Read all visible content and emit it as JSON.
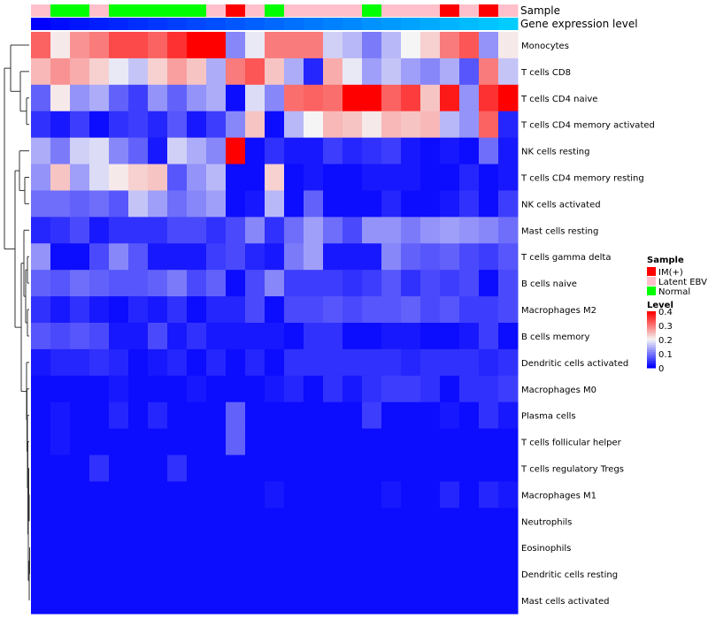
{
  "chart_data": {
    "type": "heatmap",
    "title": "",
    "annotation_labels": {
      "sample": "Sample",
      "level": "Gene expression level"
    },
    "rows": [
      "Monocytes",
      "T cells CD8",
      "T cells CD4 naive",
      "T cells CD4 memory activated",
      "NK cells resting",
      "T cells CD4 memory resting",
      "NK cells activated",
      "Mast cells resting",
      "T cells gamma delta",
      "B cells naive",
      "Macrophages M2",
      "B cells memory",
      "Dendritic cells activated",
      "Macrophages M0",
      "Plasma cells",
      "T cells follicular helper",
      "T cells regulatory  Tregs",
      "Macrophages M1",
      "Neutrophils",
      "Eosinophils",
      "Dendritic cells resting",
      "Mast cells activated"
    ],
    "column_samples": [
      "Latent EBV",
      "Normal",
      "Normal",
      "Latent EBV",
      "Normal",
      "Normal",
      "Normal",
      "Normal",
      "Normal",
      "Latent EBV",
      "IM(+)",
      "Latent EBV",
      "Normal",
      "Latent EBV",
      "Latent EBV",
      "Latent EBV",
      "Latent EBV",
      "Normal",
      "Latent EBV",
      "Latent EBV",
      "Latent EBV",
      "IM(+)",
      "Latent EBV",
      "IM(+)",
      "Latent EBV"
    ],
    "column_levels": [
      0.05,
      0.08,
      0.1,
      0.12,
      0.14,
      0.16,
      0.18,
      0.2,
      0.22,
      0.24,
      0.26,
      0.28,
      0.3,
      0.32,
      0.34,
      0.36,
      0.38,
      0.4,
      0.42,
      0.44,
      0.46,
      0.48,
      0.5,
      0.52,
      0.54
    ],
    "values": [
      [
        0.32,
        0.21,
        0.28,
        0.3,
        0.34,
        0.34,
        0.32,
        0.36,
        0.4,
        0.4,
        0.11,
        0.19,
        0.3,
        0.3,
        0.3,
        0.17,
        0.15,
        0.1,
        0.15,
        0.2,
        0.23,
        0.3,
        0.33,
        0.12,
        0.21
      ],
      [
        0.25,
        0.28,
        0.26,
        0.23,
        0.19,
        0.16,
        0.23,
        0.27,
        0.24,
        0.14,
        0.3,
        0.33,
        0.24,
        0.14,
        0.03,
        0.26,
        0.19,
        0.13,
        0.16,
        0.13,
        0.11,
        0.14,
        0.07,
        0.3,
        0.16
      ],
      [
        0.08,
        0.21,
        0.12,
        0.14,
        0.08,
        0.05,
        0.12,
        0.08,
        0.12,
        0.14,
        0.01,
        0.18,
        0.11,
        0.31,
        0.32,
        0.31,
        0.4,
        0.4,
        0.32,
        0.35,
        0.24,
        0.38,
        0.12,
        0.36,
        0.4
      ],
      [
        0.04,
        0.02,
        0.05,
        0.01,
        0.04,
        0.05,
        0.03,
        0.07,
        0.02,
        0.05,
        0.11,
        0.24,
        0.01,
        0.15,
        0.2,
        0.25,
        0.24,
        0.21,
        0.25,
        0.24,
        0.25,
        0.15,
        0.12,
        0.32,
        0.03
      ],
      [
        0.14,
        0.1,
        0.17,
        0.18,
        0.11,
        0.08,
        0.02,
        0.17,
        0.14,
        0.11,
        0.4,
        0.01,
        0.04,
        0.02,
        0.02,
        0.05,
        0.03,
        0.04,
        0.05,
        0.02,
        0.01,
        0.02,
        0.01,
        0.09,
        0.02
      ],
      [
        0.12,
        0.24,
        0.13,
        0.18,
        0.21,
        0.23,
        0.24,
        0.07,
        0.12,
        0.15,
        0.01,
        0.01,
        0.23,
        0.01,
        0.02,
        0.01,
        0.01,
        0.02,
        0.02,
        0.02,
        0.01,
        0.01,
        0.03,
        0.01,
        0.02
      ],
      [
        0.09,
        0.09,
        0.08,
        0.09,
        0.07,
        0.16,
        0.13,
        0.09,
        0.11,
        0.13,
        0.01,
        0.02,
        0.15,
        0.01,
        0.08,
        0.01,
        0.01,
        0.01,
        0.03,
        0.01,
        0.01,
        0.02,
        0.04,
        0.01,
        0.05
      ],
      [
        0.03,
        0.04,
        0.06,
        0.02,
        0.04,
        0.04,
        0.04,
        0.06,
        0.06,
        0.04,
        0.06,
        0.11,
        0.04,
        0.09,
        0.13,
        0.09,
        0.06,
        0.12,
        0.12,
        0.1,
        0.12,
        0.13,
        0.12,
        0.11,
        0.09
      ],
      [
        0.12,
        0.01,
        0.01,
        0.06,
        0.11,
        0.07,
        0.02,
        0.02,
        0.02,
        0.05,
        0.06,
        0.03,
        0.02,
        0.1,
        0.13,
        0.02,
        0.02,
        0.02,
        0.11,
        0.08,
        0.07,
        0.08,
        0.06,
        0.05,
        0.07
      ],
      [
        0.08,
        0.07,
        0.09,
        0.08,
        0.07,
        0.07,
        0.08,
        0.1,
        0.06,
        0.08,
        0.01,
        0.06,
        0.11,
        0.05,
        0.05,
        0.05,
        0.04,
        0.05,
        0.07,
        0.04,
        0.06,
        0.05,
        0.06,
        0.01,
        0.06
      ],
      [
        0.04,
        0.02,
        0.04,
        0.02,
        0.01,
        0.03,
        0.02,
        0.04,
        0.01,
        0.03,
        0.03,
        0.06,
        0.01,
        0.06,
        0.06,
        0.07,
        0.06,
        0.07,
        0.07,
        0.08,
        0.06,
        0.07,
        0.05,
        0.05,
        0.06
      ],
      [
        0.07,
        0.06,
        0.07,
        0.06,
        0.02,
        0.02,
        0.06,
        0.02,
        0.04,
        0.02,
        0.02,
        0.02,
        0.02,
        0.01,
        0.04,
        0.04,
        0.01,
        0.01,
        0.02,
        0.02,
        0.01,
        0.01,
        0.02,
        0.05,
        0.01
      ],
      [
        0.02,
        0.03,
        0.03,
        0.04,
        0.03,
        0.01,
        0.02,
        0.03,
        0.01,
        0.03,
        0.01,
        0.03,
        0.01,
        0.04,
        0.04,
        0.04,
        0.04,
        0.04,
        0.04,
        0.03,
        0.04,
        0.04,
        0.04,
        0.03,
        0.04
      ],
      [
        0.01,
        0.01,
        0.01,
        0.01,
        0.02,
        0.01,
        0.01,
        0.01,
        0.02,
        0.01,
        0.01,
        0.01,
        0.02,
        0.03,
        0.01,
        0.04,
        0.02,
        0.04,
        0.05,
        0.05,
        0.04,
        0.01,
        0.04,
        0.04,
        0.05
      ],
      [
        0.01,
        0.02,
        0.01,
        0.01,
        0.03,
        0.01,
        0.03,
        0.01,
        0.01,
        0.01,
        0.08,
        0.01,
        0.01,
        0.01,
        0.01,
        0.01,
        0.01,
        0.05,
        0.01,
        0.01,
        0.01,
        0.02,
        0.01,
        0.04,
        0.02
      ],
      [
        0.01,
        0.02,
        0.01,
        0.01,
        0.01,
        0.01,
        0.01,
        0.01,
        0.01,
        0.01,
        0.08,
        0.01,
        0.01,
        0.01,
        0.01,
        0.01,
        0.01,
        0.01,
        0.01,
        0.01,
        0.01,
        0.01,
        0.01,
        0.01,
        0.01
      ],
      [
        0.01,
        0.01,
        0.01,
        0.04,
        0.01,
        0.01,
        0.01,
        0.04,
        0.01,
        0.01,
        0.01,
        0.01,
        0.01,
        0.01,
        0.01,
        0.01,
        0.01,
        0.01,
        0.01,
        0.01,
        0.01,
        0.01,
        0.01,
        0.01,
        0.01
      ],
      [
        0.01,
        0.01,
        0.01,
        0.01,
        0.01,
        0.01,
        0.01,
        0.01,
        0.01,
        0.01,
        0.01,
        0.01,
        0.02,
        0.01,
        0.01,
        0.01,
        0.01,
        0.01,
        0.02,
        0.01,
        0.01,
        0.03,
        0.01,
        0.03,
        0.02
      ],
      [
        0.01,
        0.01,
        0.01,
        0.01,
        0.01,
        0.01,
        0.01,
        0.01,
        0.01,
        0.01,
        0.01,
        0.01,
        0.01,
        0.01,
        0.01,
        0.01,
        0.01,
        0.01,
        0.01,
        0.01,
        0.01,
        0.01,
        0.01,
        0.01,
        0.01
      ],
      [
        0.01,
        0.01,
        0.01,
        0.01,
        0.01,
        0.01,
        0.01,
        0.01,
        0.01,
        0.01,
        0.01,
        0.01,
        0.01,
        0.01,
        0.01,
        0.01,
        0.01,
        0.01,
        0.01,
        0.01,
        0.01,
        0.01,
        0.01,
        0.01,
        0.01
      ],
      [
        0.01,
        0.01,
        0.01,
        0.01,
        0.01,
        0.01,
        0.01,
        0.01,
        0.01,
        0.01,
        0.01,
        0.01,
        0.01,
        0.01,
        0.01,
        0.01,
        0.01,
        0.01,
        0.01,
        0.01,
        0.01,
        0.01,
        0.01,
        0.01,
        0.01
      ],
      [
        0.01,
        0.01,
        0.01,
        0.01,
        0.01,
        0.01,
        0.01,
        0.01,
        0.01,
        0.01,
        0.01,
        0.01,
        0.01,
        0.01,
        0.01,
        0.01,
        0.01,
        0.01,
        0.01,
        0.01,
        0.01,
        0.01,
        0.01,
        0.01,
        0.01
      ]
    ],
    "color_scale": {
      "min": 0,
      "mid": 0.2,
      "max": 0.4,
      "low_color": "#0000ff",
      "mid_color": "#f5f5f5",
      "high_color": "#ff0000"
    },
    "legend": {
      "sample_title": "Sample",
      "sample_items": [
        {
          "label": "IM(+)",
          "color": "#ff0000"
        },
        {
          "label": "Latent EBV",
          "color": "#ffc0cb"
        },
        {
          "label": "Normal",
          "color": "#00ff00"
        }
      ],
      "level_title": "Level",
      "level_ticks": [
        0.4,
        0.3,
        0.2,
        0.1,
        0
      ],
      "level_tick_labels": [
        "0.4",
        "0.3",
        "0.2",
        "0.1",
        "0"
      ],
      "level_colors": {
        "low": "#0000ff",
        "high": "#00ccff"
      },
      "placement": "right"
    }
  }
}
